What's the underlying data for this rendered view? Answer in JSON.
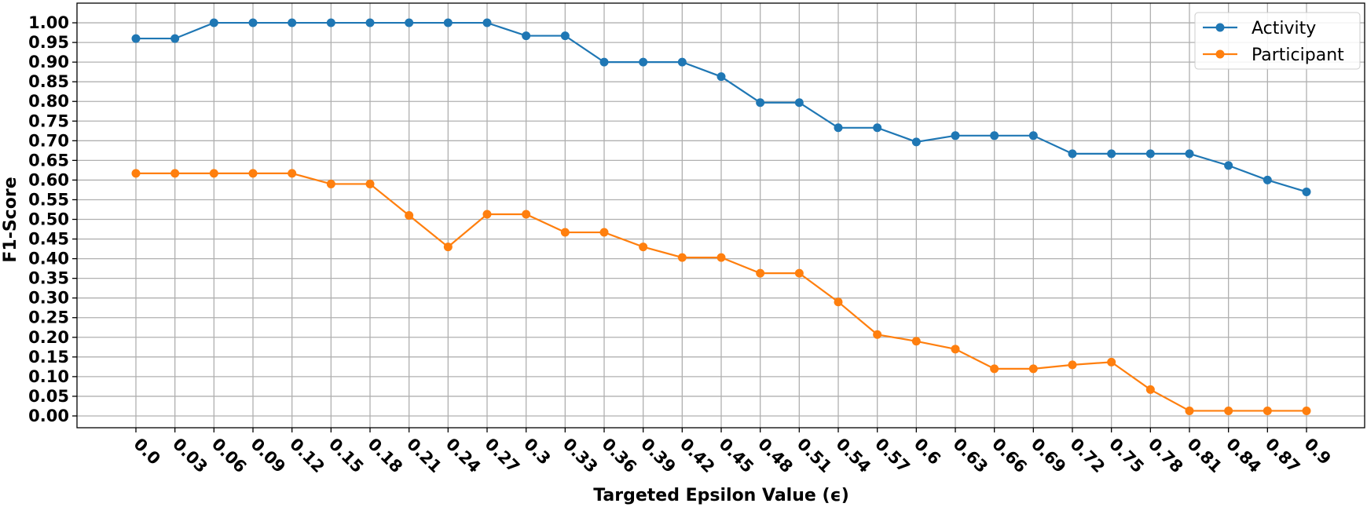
{
  "chart_data": {
    "type": "line",
    "xlabel": "Targeted Epsilon Value (ϵ)",
    "ylabel": "F1-Score",
    "categories": [
      "0.0",
      "0.03",
      "0.06",
      "0.09",
      "0.12",
      "0.15",
      "0.18",
      "0.21",
      "0.24",
      "0.27",
      "0.3",
      "0.33",
      "0.36",
      "0.39",
      "0.42",
      "0.45",
      "0.48",
      "0.51",
      "0.54",
      "0.57",
      "0.6",
      "0.63",
      "0.66",
      "0.69",
      "0.72",
      "0.75",
      "0.78",
      "0.81",
      "0.84",
      "0.87",
      "0.9"
    ],
    "y_ticks": [
      "0.00",
      "0.05",
      "0.10",
      "0.15",
      "0.20",
      "0.25",
      "0.30",
      "0.35",
      "0.40",
      "0.45",
      "0.50",
      "0.55",
      "0.60",
      "0.65",
      "0.70",
      "0.75",
      "0.80",
      "0.85",
      "0.90",
      "0.95",
      "1.00"
    ],
    "ylim": [
      -0.03,
      1.05
    ],
    "grid": true,
    "legend_position": "top-right",
    "series": [
      {
        "name": "Activity",
        "color": "#1f77b4",
        "values": [
          0.96,
          0.96,
          1.0,
          1.0,
          1.0,
          1.0,
          1.0,
          1.0,
          1.0,
          1.0,
          0.967,
          0.967,
          0.9,
          0.9,
          0.9,
          0.863,
          0.797,
          0.797,
          0.733,
          0.733,
          0.697,
          0.713,
          0.713,
          0.713,
          0.667,
          0.667,
          0.667,
          0.667,
          0.637,
          0.6,
          0.57
        ]
      },
      {
        "name": "Participant",
        "color": "#ff7f0e",
        "values": [
          0.617,
          0.617,
          0.617,
          0.617,
          0.617,
          0.59,
          0.59,
          0.51,
          0.43,
          0.513,
          0.513,
          0.467,
          0.467,
          0.43,
          0.403,
          0.403,
          0.363,
          0.363,
          0.29,
          0.207,
          0.19,
          0.17,
          0.12,
          0.12,
          0.13,
          0.137,
          0.067,
          0.013,
          0.013,
          0.013,
          0.013
        ]
      }
    ]
  }
}
